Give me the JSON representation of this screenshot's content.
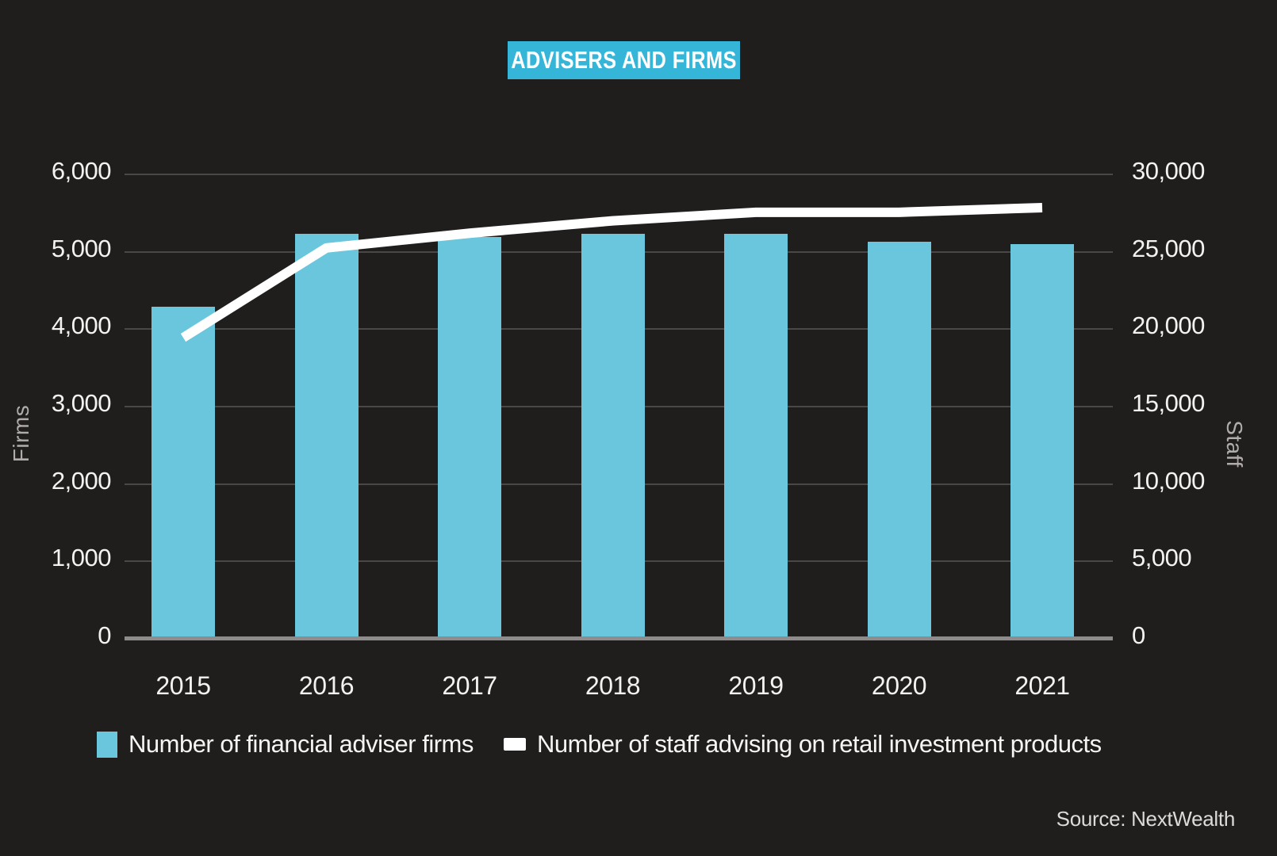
{
  "title": "ADVISERS AND FIRMS",
  "source": "Source: NextWealth",
  "colors": {
    "background": "#201d1d",
    "title_bg": "#35b6d8",
    "bar": "#69c6dd",
    "line": "#ffffff",
    "gridline": "#4a4747",
    "axis_line": "#8d8b8b",
    "text": "#f4f2f1",
    "muted_text": "#b0acac"
  },
  "chart_data": {
    "type": "bar",
    "subtype": "dual-axis bar + line",
    "categories": [
      "2015",
      "2016",
      "2017",
      "2018",
      "2019",
      "2020",
      "2021"
    ],
    "series": [
      {
        "name": "Number of financial adviser firms",
        "type": "bar",
        "axis": "left",
        "color": "#69c6dd",
        "values": [
          4290,
          5230,
          5190,
          5230,
          5230,
          5130,
          5100
        ]
      },
      {
        "name": "Number of staff advising on retail investment products",
        "type": "line",
        "axis": "right",
        "color": "#ffffff",
        "values": [
          19450,
          25250,
          26200,
          27000,
          27550,
          27550,
          27850
        ]
      }
    ],
    "left_axis": {
      "label": "Firms",
      "range": [
        0,
        6000
      ],
      "tick_step": 1000,
      "ticks": [
        "0",
        "1,000",
        "2,000",
        "3,000",
        "4,000",
        "5,000",
        "6,000"
      ]
    },
    "right_axis": {
      "label": "Staff",
      "range": [
        0,
        30000
      ],
      "tick_step": 5000,
      "ticks": [
        "0",
        "5,000",
        "10,000",
        "15,000",
        "20,000",
        "25,000",
        "30,000"
      ]
    },
    "grid": "horizontal gridlines only",
    "legend_position": "bottom"
  }
}
